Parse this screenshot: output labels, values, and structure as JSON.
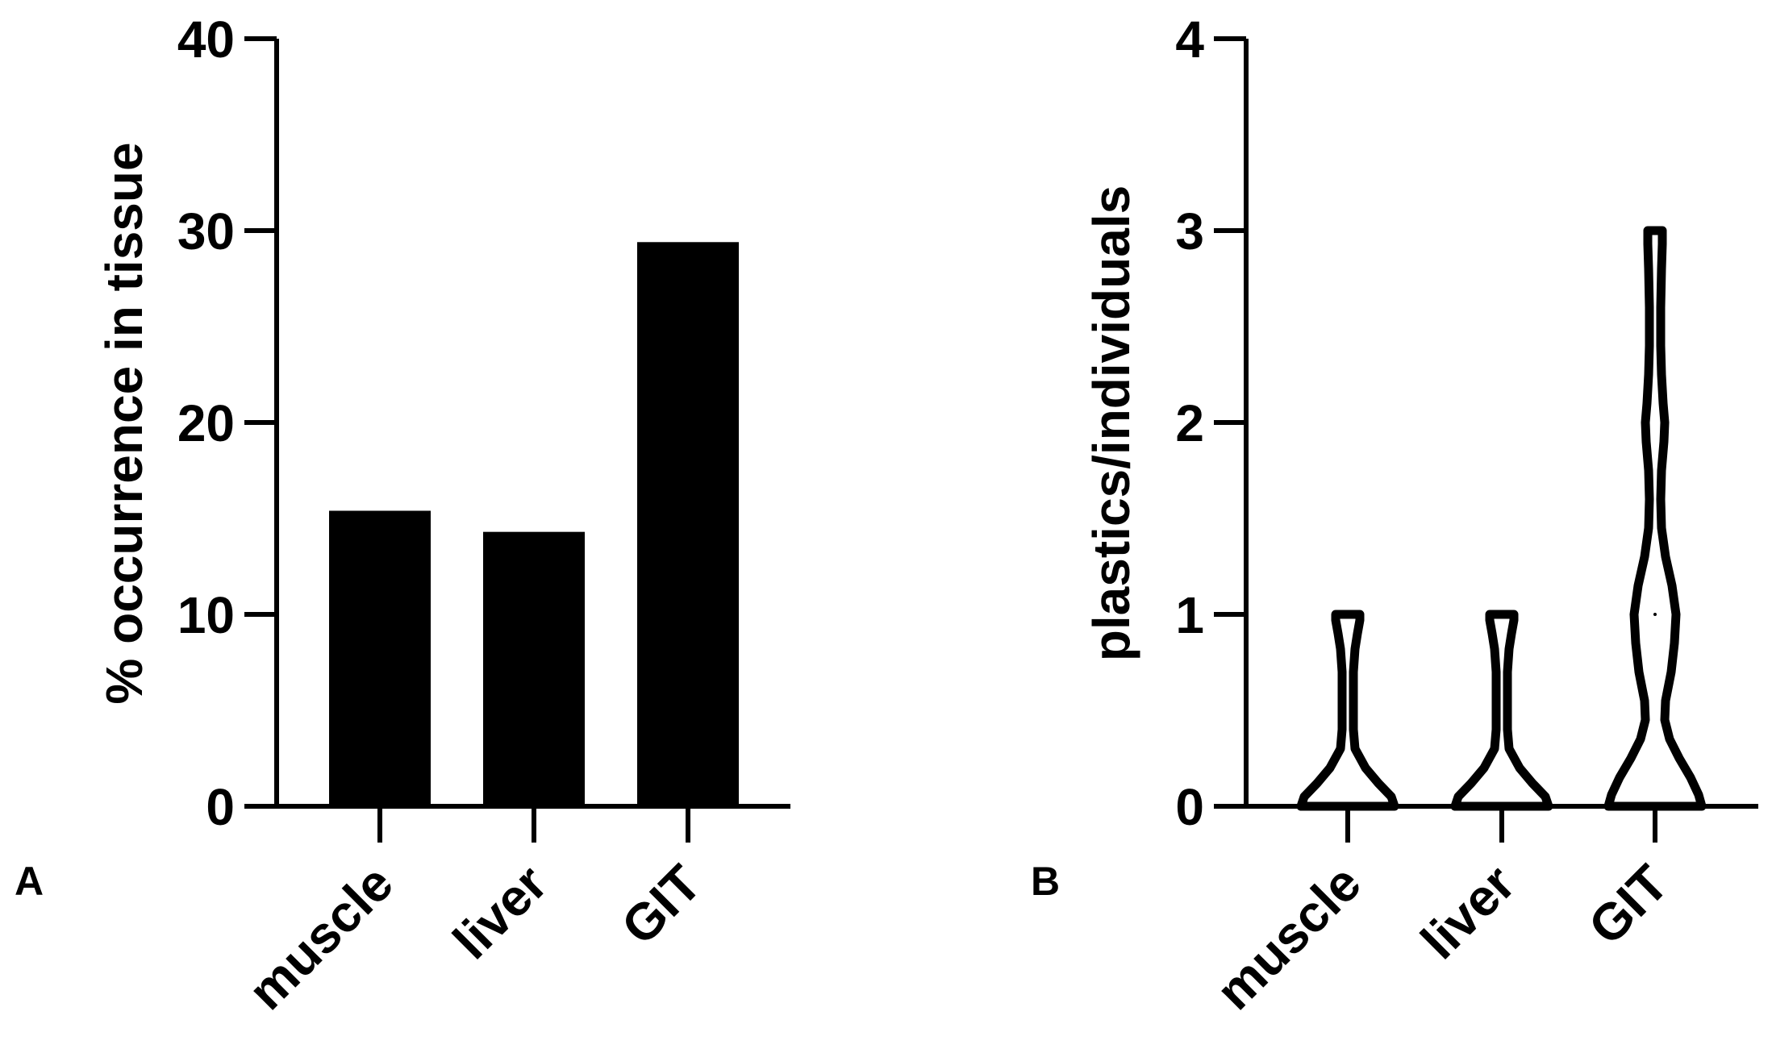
{
  "chart_data": [
    {
      "type": "bar",
      "panel_label": "A",
      "categories": [
        "muscle",
        "liver",
        "GIT"
      ],
      "values": [
        15.4,
        14.3,
        29.4
      ],
      "ylabel": "% occurrence in tissue",
      "xlabel": "",
      "ylim": [
        0,
        40
      ],
      "yticks": [
        0,
        10,
        20,
        30,
        40
      ],
      "bar_color": "#000000",
      "grid": false
    },
    {
      "type": "violin",
      "panel_label": "B",
      "categories": [
        "muscle",
        "liver",
        "GIT"
      ],
      "ylabel": "plastics/individuals",
      "xlabel": "",
      "ylim": [
        0,
        4
      ],
      "yticks": [
        0,
        1,
        2,
        3,
        4
      ],
      "distribution_range": [
        [
          0,
          1
        ],
        [
          0,
          1
        ],
        [
          0,
          3
        ]
      ],
      "median": [
        0,
        0,
        1
      ],
      "grid": false
    }
  ]
}
